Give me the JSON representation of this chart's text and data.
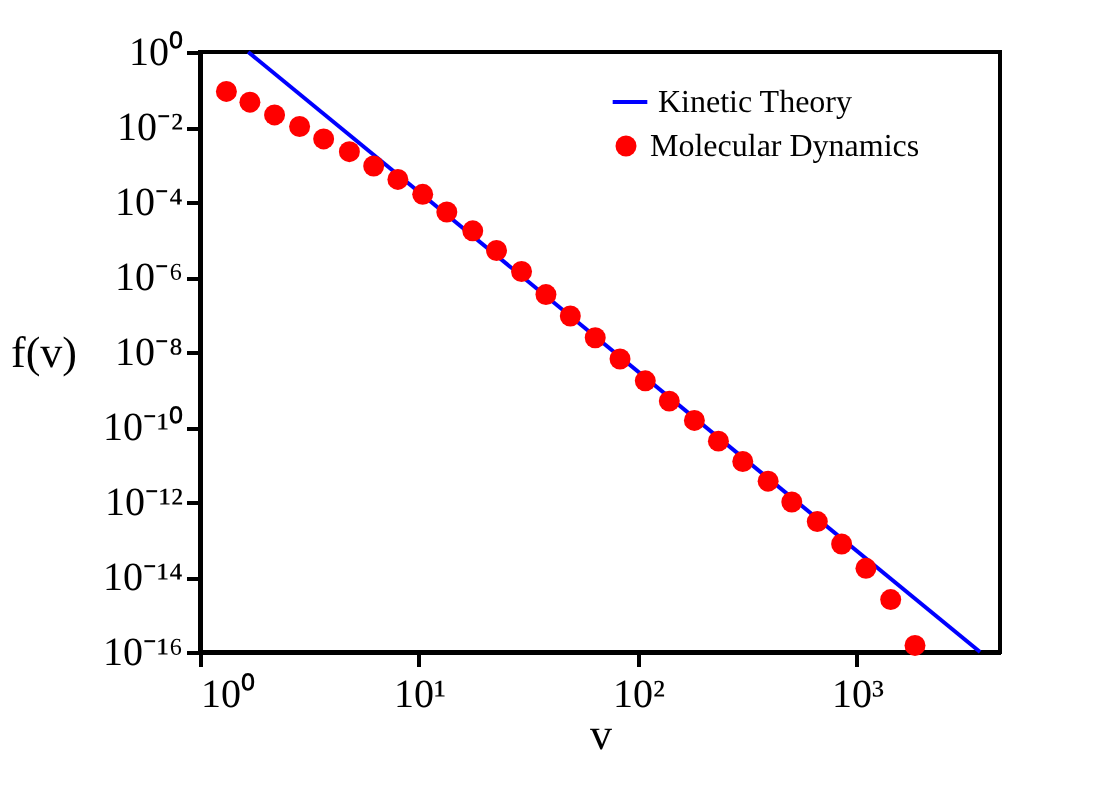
{
  "chart_data": {
    "type": "scatter",
    "xlabel": "v",
    "ylabel": "f(v)",
    "log": "xy",
    "grid": false,
    "legend": "top right",
    "xlim": [
      1,
      4500
    ],
    "ylim": [
      1e-16,
      1
    ],
    "xticks": [
      {
        "value": 1,
        "label": "10⁰"
      },
      {
        "value": 10,
        "label": "10¹"
      },
      {
        "value": 100,
        "label": "10²"
      },
      {
        "value": 1000,
        "label": "10³"
      }
    ],
    "yticks": [
      {
        "value": 1e-16,
        "label": "10⁻¹⁶"
      },
      {
        "value": 1e-14,
        "label": "10⁻¹⁴"
      },
      {
        "value": 1e-12,
        "label": "10⁻¹²"
      },
      {
        "value": 1e-10,
        "label": "10⁻¹⁰"
      },
      {
        "value": 1e-08,
        "label": "10⁻⁸"
      },
      {
        "value": 1e-06,
        "label": "10⁻⁶"
      },
      {
        "value": 0.0001,
        "label": "10⁻⁴"
      },
      {
        "value": 0.01,
        "label": "10⁻²"
      },
      {
        "value": 1,
        "label": "10⁰"
      }
    ],
    "series": [
      {
        "name": "Kinetic Theory",
        "type": "line",
        "color": "#0000ff",
        "marker": "none",
        "line_style": "solid",
        "x": [
          1.66,
          3650
        ],
        "values": [
          1,
          1e-16
        ]
      },
      {
        "name": "Molecular Dynamics",
        "color": "#ff0000",
        "marker": "circle",
        "x": [
          1.32,
          1.69,
          2.19,
          2.85,
          3.67,
          4.81,
          6.21,
          8.01,
          10.4,
          13.4,
          17.6,
          22.6,
          29.4,
          38.0,
          49.1,
          63.8,
          82.8,
          108,
          139,
          181,
          233,
          301,
          393,
          504,
          659,
          851,
          1099,
          1426,
          1841
        ],
        "values": [
          0.089,
          0.046,
          0.021,
          0.0103,
          0.0048,
          0.0022,
          0.00091,
          0.0004,
          0.00016,
          5.4e-05,
          1.7e-05,
          5.1e-06,
          1.4e-06,
          3.4e-07,
          9.1e-08,
          2.4e-08,
          6.5e-09,
          1.7e-09,
          4.9e-10,
          1.5e-10,
          4.2e-11,
          1.2e-11,
          3.6e-12,
          1e-12,
          3e-13,
          7.6e-14,
          1.7e-14,
          2.5e-15,
          1.5e-16
        ]
      }
    ]
  }
}
